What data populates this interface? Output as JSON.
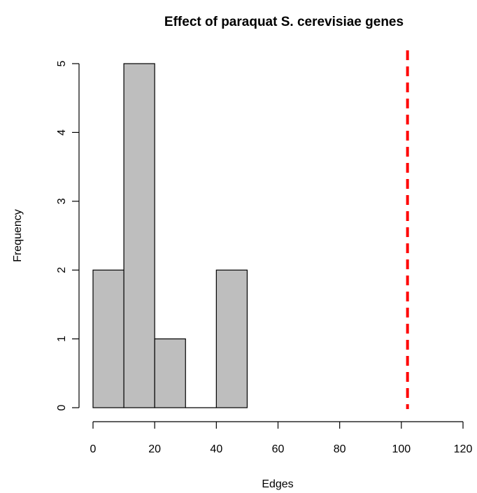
{
  "chart_data": {
    "type": "bar",
    "title": "Effect of paraquat S. cerevisiae genes",
    "xlabel": "Edges",
    "ylabel": "Frequency",
    "bins": [
      {
        "x0": 0,
        "x1": 10,
        "count": 2
      },
      {
        "x0": 10,
        "x1": 20,
        "count": 5
      },
      {
        "x0": 20,
        "x1": 30,
        "count": 1
      },
      {
        "x0": 30,
        "x1": 40,
        "count": 0
      },
      {
        "x0": 40,
        "x1": 50,
        "count": 2
      }
    ],
    "x_ticks": [
      0,
      20,
      40,
      60,
      80,
      100,
      120
    ],
    "y_ticks": [
      0,
      1,
      2,
      3,
      4,
      5
    ],
    "xlim": [
      0,
      120
    ],
    "ylim": [
      0,
      5
    ],
    "reference_line": {
      "x": 102,
      "style": "dashed",
      "color": "#ff0000"
    },
    "bar_color": "#bebebe",
    "bar_border_color": "#000000",
    "grid": false
  }
}
